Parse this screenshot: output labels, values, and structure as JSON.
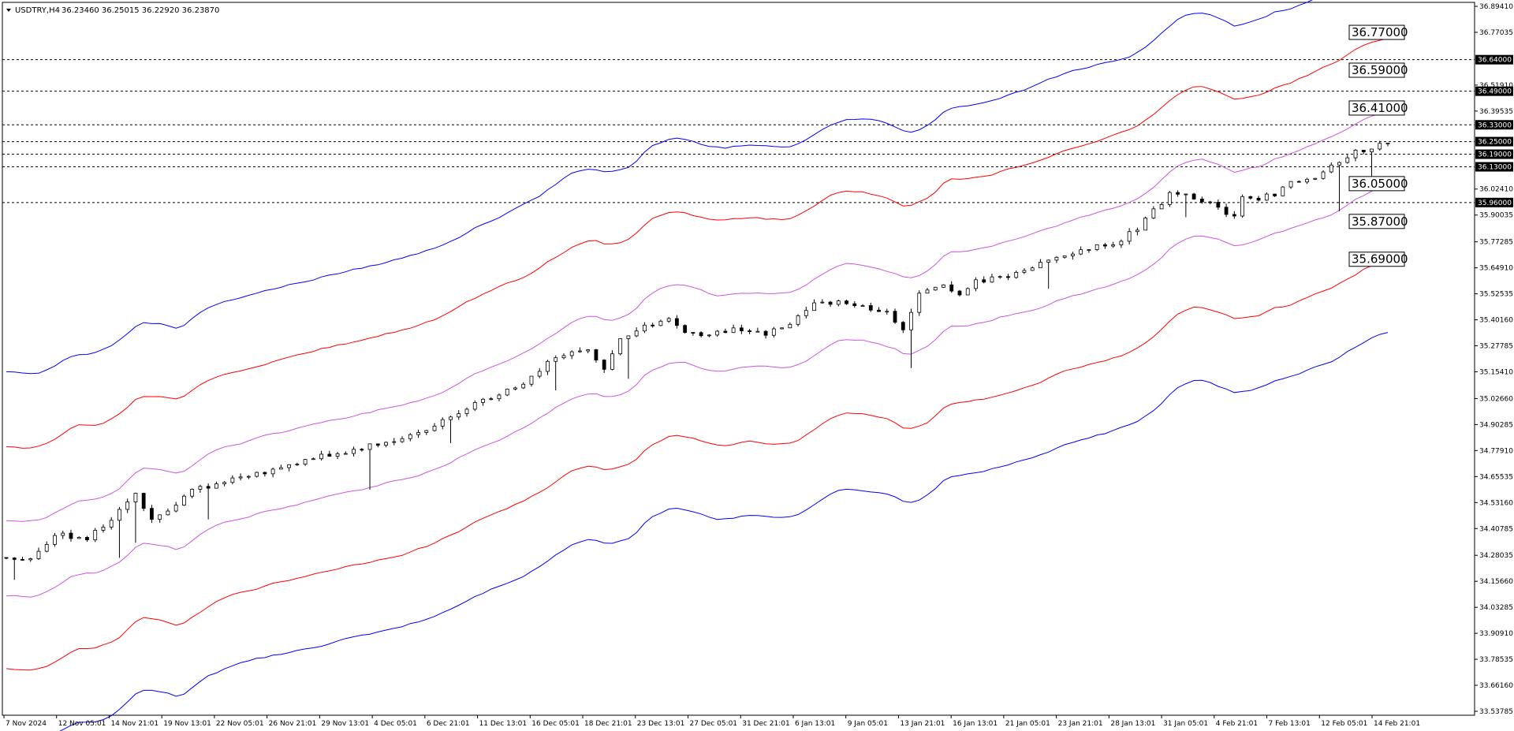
{
  "header": {
    "symbol": "USDTRY,H4",
    "ohlc": "36.23460 36.25015 36.22920 36.23870"
  },
  "chart_data": {
    "type": "line",
    "title": "USDTRY,H4",
    "ylim": [
      33.53785,
      36.8941
    ],
    "y_ticks": [
      "36.89410",
      "36.77035",
      "36.51910",
      "36.39535",
      "36.02410",
      "35.90035",
      "35.77285",
      "35.64910",
      "35.52535",
      "35.40160",
      "35.27785",
      "35.15410",
      "35.02660",
      "34.90285",
      "34.77910",
      "34.65535",
      "34.53160",
      "34.40785",
      "34.28035",
      "34.15660",
      "34.03285",
      "33.90910",
      "33.78535",
      "33.66160",
      "33.53785"
    ],
    "x_ticks": [
      "7 Nov 2024",
      "12 Nov 05:01",
      "14 Nov 21:01",
      "19 Nov 13:01",
      "22 Nov 05:01",
      "26 Nov 21:01",
      "29 Nov 13:01",
      "4 Dec 05:01",
      "6 Dec 21:01",
      "11 Dec 13:01",
      "16 Dec 05:01",
      "18 Dec 21:01",
      "23 Dec 13:01",
      "27 Dec 05:01",
      "31 Dec 21:01",
      "6 Jan 13:01",
      "9 Jan 05:01",
      "13 Jan 21:01",
      "16 Jan 13:01",
      "21 Jan 05:01",
      "23 Jan 21:01",
      "28 Jan 13:01",
      "31 Jan 05:01",
      "4 Feb 21:01",
      "7 Feb 13:01",
      "12 Feb 05:01",
      "14 Feb 21:01"
    ],
    "horizontal_levels": [
      {
        "value": 36.64,
        "label": "36.64000"
      },
      {
        "value": 36.49,
        "label": "36.49000"
      },
      {
        "value": 36.33,
        "label": "36.33000"
      },
      {
        "value": 36.25,
        "label": "36.25000"
      },
      {
        "value": 36.19,
        "label": "36.19000"
      },
      {
        "value": 36.13,
        "label": "36.13000"
      },
      {
        "value": 35.96,
        "label": "35.96000"
      }
    ],
    "channel_labels": [
      {
        "value": 36.77,
        "label": "36.77000"
      },
      {
        "value": 36.59,
        "label": "36.59000"
      },
      {
        "value": 36.41,
        "label": "36.41000"
      },
      {
        "value": 36.05,
        "label": "36.05000"
      },
      {
        "value": 35.87,
        "label": "35.87000"
      },
      {
        "value": 35.69,
        "label": "35.69000"
      }
    ],
    "price_path": [
      [
        0,
        34.27
      ],
      [
        3,
        34.26
      ],
      [
        6,
        34.38
      ],
      [
        10,
        34.36
      ],
      [
        14,
        34.49
      ],
      [
        16,
        34.57
      ],
      [
        18,
        34.45
      ],
      [
        20,
        34.49
      ],
      [
        23,
        34.59
      ],
      [
        26,
        34.62
      ],
      [
        29,
        34.66
      ],
      [
        32,
        34.68
      ],
      [
        36,
        34.72
      ],
      [
        39,
        34.75
      ],
      [
        42,
        34.77
      ],
      [
        45,
        34.8
      ],
      [
        48,
        34.83
      ],
      [
        52,
        34.88
      ],
      [
        55,
        34.95
      ],
      [
        58,
        35.0
      ],
      [
        61,
        35.05
      ],
      [
        64,
        35.1
      ],
      [
        67,
        35.2
      ],
      [
        70,
        35.24
      ],
      [
        72,
        35.26
      ],
      [
        74,
        35.16
      ],
      [
        76,
        35.3
      ],
      [
        79,
        35.37
      ],
      [
        82,
        35.4
      ],
      [
        85,
        35.33
      ],
      [
        88,
        35.34
      ],
      [
        91,
        35.36
      ],
      [
        94,
        35.33
      ],
      [
        97,
        35.38
      ],
      [
        100,
        35.47
      ],
      [
        103,
        35.49
      ],
      [
        106,
        35.46
      ],
      [
        109,
        35.44
      ],
      [
        111,
        35.36
      ],
      [
        113,
        35.52
      ],
      [
        116,
        35.56
      ],
      [
        118,
        35.53
      ],
      [
        120,
        35.58
      ],
      [
        123,
        35.6
      ],
      [
        126,
        35.64
      ],
      [
        129,
        35.69
      ],
      [
        132,
        35.71
      ],
      [
        135,
        35.75
      ],
      [
        138,
        35.78
      ],
      [
        140,
        35.84
      ],
      [
        142,
        35.92
      ],
      [
        144,
        36.0
      ],
      [
        146,
        35.99
      ],
      [
        148,
        35.97
      ],
      [
        150,
        35.93
      ],
      [
        152,
        35.89
      ],
      [
        153,
        35.99
      ],
      [
        155,
        35.98
      ],
      [
        157,
        36.0
      ],
      [
        159,
        36.05
      ],
      [
        161,
        36.07
      ],
      [
        163,
        36.1
      ],
      [
        165,
        36.16
      ],
      [
        167,
        36.2
      ],
      [
        169,
        36.22
      ],
      [
        171,
        36.24
      ]
    ],
    "bands": [
      {
        "name": "",
        "color": "#0000ff",
        "offset": 0.88
      },
      {
        "name": "",
        "color": "#ff0000",
        "offset": 0.53
      },
      {
        "name": "",
        "color": "#cc55dd",
        "offset": 0.18
      },
      {
        "name": "",
        "color": "#cc55dd",
        "offset": -0.18
      },
      {
        "name": "",
        "color": "#ff0000",
        "offset": -0.53
      },
      {
        "name": "",
        "color": "#0000ff",
        "offset": -0.88
      }
    ],
    "ma_lag": 4
  }
}
